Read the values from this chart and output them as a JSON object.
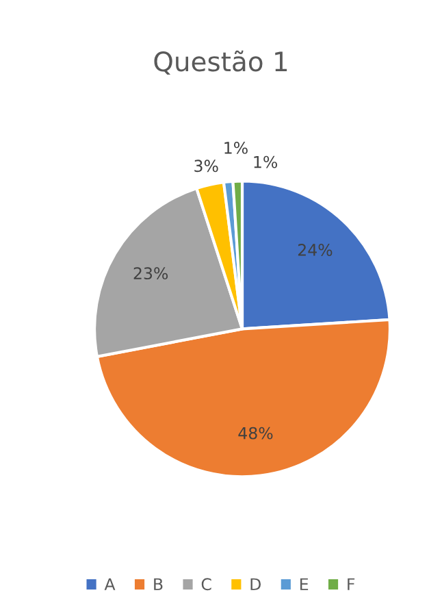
{
  "chart_data": {
    "type": "pie",
    "title": "Questão 1",
    "categories": [
      "A",
      "B",
      "C",
      "D",
      "E",
      "F"
    ],
    "values": [
      24,
      48,
      23,
      3,
      1,
      1
    ],
    "colors": [
      "#4472c4",
      "#ed7d31",
      "#a5a5a5",
      "#ffc000",
      "#5b9bd5",
      "#70ad47"
    ],
    "value_labels": [
      "24%",
      "48%",
      "23%",
      "3%",
      "1%",
      "1%"
    ],
    "legend": "bottom"
  }
}
